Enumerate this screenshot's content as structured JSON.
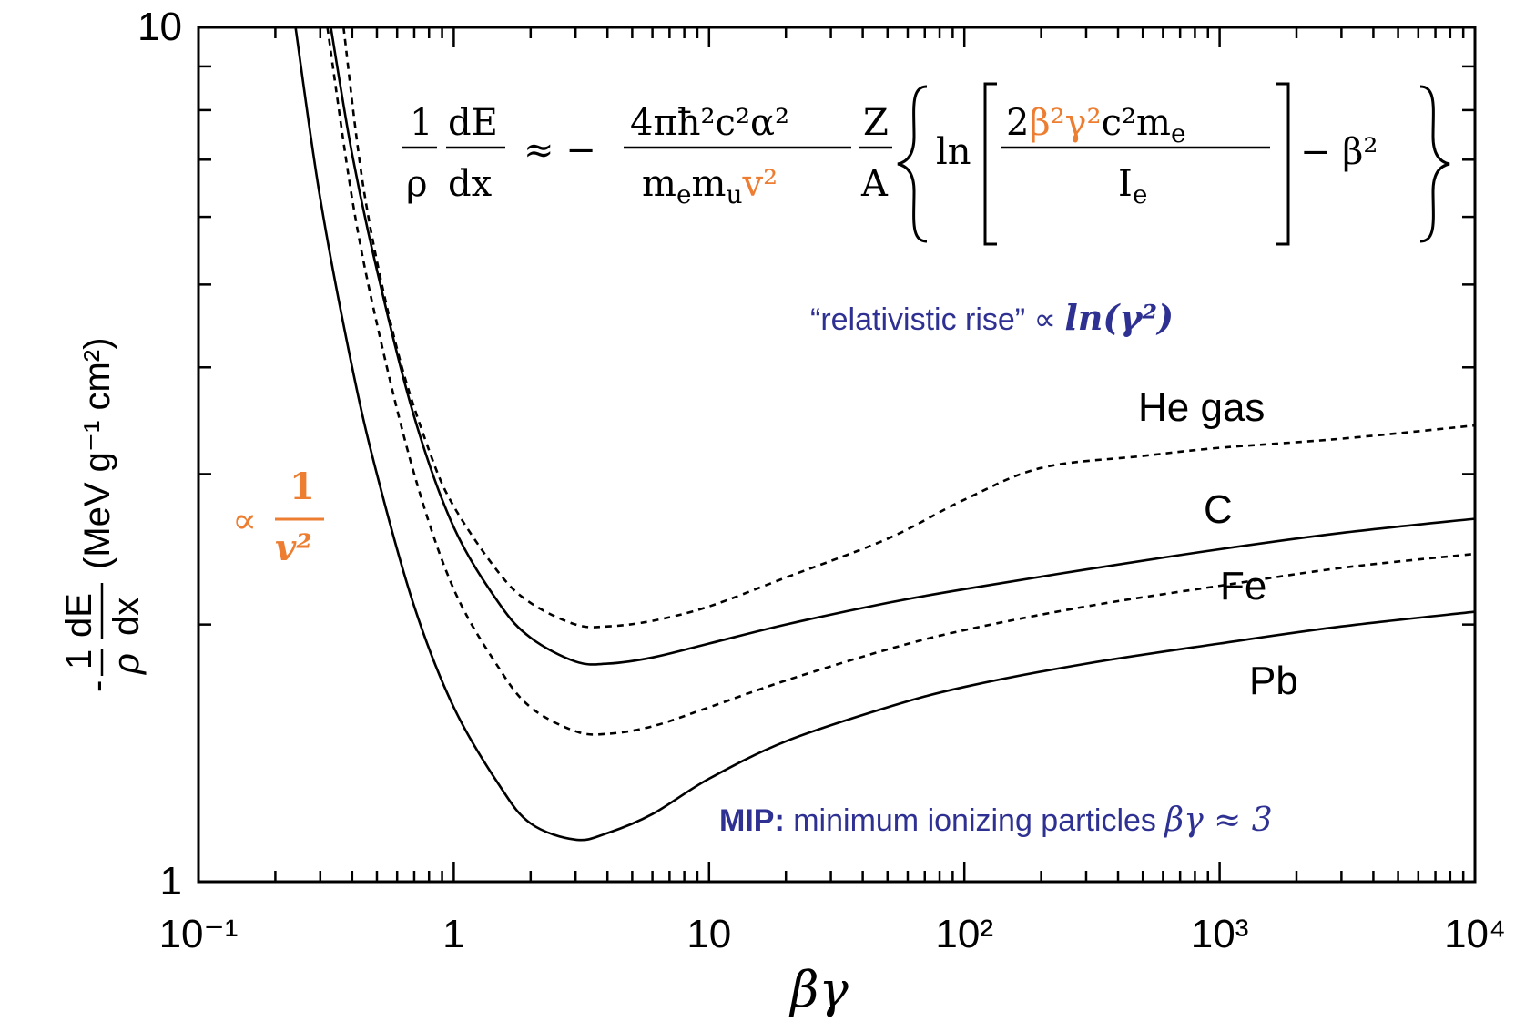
{
  "chart_data": {
    "type": "line",
    "x_scale": "log",
    "y_scale": "log",
    "xlim": [
      0.1,
      10000
    ],
    "ylim": [
      1,
      10
    ],
    "xlabel": "βγ",
    "ylabel_parts": {
      "prefix": "-",
      "num": "1",
      "den": "ρ",
      "dnum": "dE",
      "dden": "dx",
      "units": "(MeV g⁻¹ cm²)"
    },
    "x_ticks": [
      {
        "value": 0.1,
        "label": "10⁻¹"
      },
      {
        "value": 1,
        "label": "1"
      },
      {
        "value": 10,
        "label": "10"
      },
      {
        "value": 100,
        "label": "10²"
      },
      {
        "value": 1000,
        "label": "10³"
      },
      {
        "value": 10000,
        "label": "10⁴"
      }
    ],
    "y_ticks": [
      {
        "value": 1,
        "label": "1"
      },
      {
        "value": 10,
        "label": "10"
      }
    ],
    "series": [
      {
        "name": "He gas",
        "style": "dashed",
        "x": [
          0.37,
          0.45,
          0.6,
          0.8,
          1.0,
          1.5,
          2.0,
          3.0,
          4.0,
          6.0,
          10,
          20,
          50,
          100,
          200,
          500,
          1000,
          3000,
          10000
        ],
        "y": [
          10.0,
          6.3,
          4.2,
          3.2,
          2.75,
          2.3,
          2.12,
          2.0,
          1.99,
          2.02,
          2.1,
          2.27,
          2.52,
          2.8,
          3.05,
          3.15,
          3.22,
          3.3,
          3.42
        ]
      },
      {
        "name": "C",
        "style": "solid",
        "x": [
          0.33,
          0.4,
          0.5,
          0.7,
          1.0,
          1.5,
          2.0,
          3.0,
          4.0,
          6.0,
          10,
          20,
          50,
          100,
          300,
          1000,
          3000,
          10000
        ],
        "y": [
          10.0,
          7.1,
          5.2,
          3.5,
          2.6,
          2.12,
          1.93,
          1.81,
          1.8,
          1.83,
          1.9,
          2.0,
          2.12,
          2.2,
          2.32,
          2.45,
          2.56,
          2.66
        ]
      },
      {
        "name": "Fe",
        "style": "dashed",
        "x": [
          0.32,
          0.4,
          0.5,
          0.7,
          1.0,
          1.5,
          2.0,
          3.0,
          4.0,
          6.0,
          10,
          20,
          50,
          100,
          300,
          1000,
          3000,
          10000
        ],
        "y": [
          10.0,
          6.3,
          4.5,
          3.0,
          2.2,
          1.78,
          1.6,
          1.5,
          1.49,
          1.52,
          1.6,
          1.72,
          1.87,
          1.97,
          2.1,
          2.22,
          2.33,
          2.42
        ]
      },
      {
        "name": "Pb",
        "style": "solid",
        "x": [
          0.24,
          0.3,
          0.4,
          0.5,
          0.7,
          1.0,
          1.5,
          2.0,
          3.0,
          4.0,
          6.0,
          10,
          20,
          50,
          100,
          300,
          1000,
          3000,
          10000
        ],
        "y": [
          10.0,
          6.3,
          4.0,
          3.0,
          2.1,
          1.6,
          1.3,
          1.17,
          1.12,
          1.14,
          1.2,
          1.32,
          1.46,
          1.6,
          1.69,
          1.8,
          1.9,
          1.99,
          2.07
        ]
      }
    ],
    "series_labels": [
      "He gas",
      "C",
      "Fe",
      "Pb"
    ],
    "annotations": {
      "inv_v2": {
        "prop": "∝",
        "num": "1",
        "den": "v²"
      },
      "relativistic_rise": {
        "text": "“relativistic rise” ∝ ",
        "expr": "ln(γ²)"
      },
      "mip": {
        "bold": "MIP:",
        "text": " minimum ionizing particles ",
        "expr": "βγ ≈ 3"
      }
    },
    "formula": {
      "lhs_num1": "1",
      "lhs_den1": "ρ",
      "lhs_num2": "dE",
      "lhs_den2": "dx",
      "approx": "≈ −",
      "frac_num": "4πħ²c²α²",
      "frac_den_a": "m",
      "frac_den_a_sub": "e",
      "frac_den_b": "m",
      "frac_den_b_sub": "u",
      "frac_den_v": "v²",
      "za_num": "Z",
      "za_den": "A",
      "ln": "ln",
      "in_num_a": "2",
      "in_num_orange": "β²γ²",
      "in_num_b": "c²m",
      "in_num_b_sub": "e",
      "in_den": "I",
      "in_den_sub": "e",
      "tail": "− β²"
    },
    "colors": {
      "orange": "#ED7D31",
      "blue": "#2E3192",
      "line": "#000000"
    },
    "grid": false,
    "legend": "none"
  }
}
